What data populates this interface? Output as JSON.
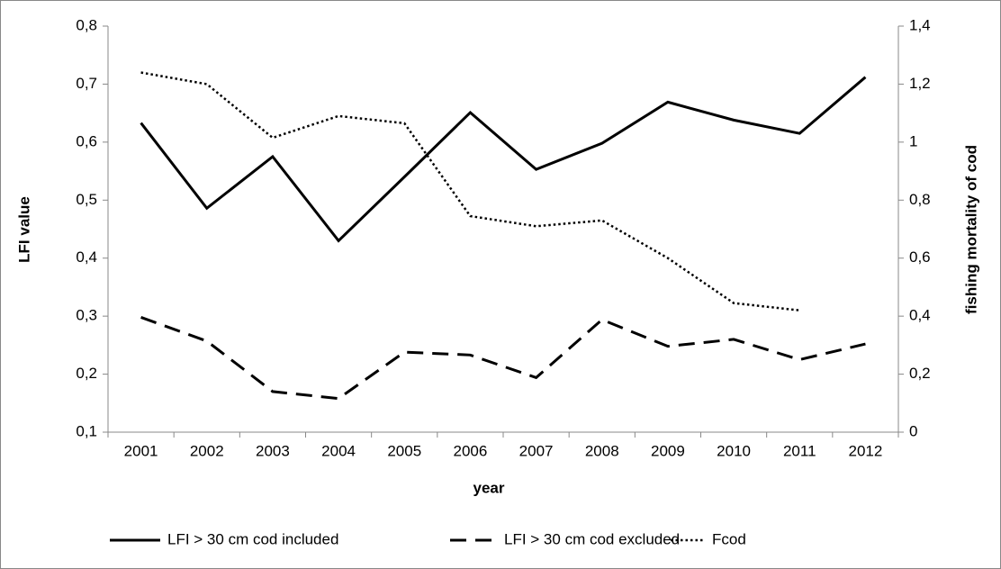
{
  "chart_data": {
    "type": "line",
    "categories": [
      "2001",
      "2002",
      "2003",
      "2004",
      "2005",
      "2006",
      "2007",
      "2008",
      "2009",
      "2010",
      "2011",
      "2012"
    ],
    "x_label": "year",
    "y_label": "LFI value",
    "y2_label": "fishing mortality of cod",
    "ylim": [
      0.1,
      0.8
    ],
    "yticks": [
      {
        "value": 0.1,
        "label": "0,1"
      },
      {
        "value": 0.2,
        "label": "0,2"
      },
      {
        "value": 0.3,
        "label": "0,3"
      },
      {
        "value": 0.4,
        "label": "0,4"
      },
      {
        "value": 0.5,
        "label": "0,5"
      },
      {
        "value": 0.6,
        "label": "0,6"
      },
      {
        "value": 0.7,
        "label": "0,7"
      },
      {
        "value": 0.8,
        "label": "0,8"
      }
    ],
    "y2lim": [
      0,
      1.4
    ],
    "y2ticks": [
      0,
      {
        "value": 0.2,
        "label": "0,2"
      },
      {
        "value": 0.4,
        "label": "0,4"
      },
      {
        "value": 0.6,
        "label": "0,6"
      },
      {
        "value": 0.8,
        "label": "0,8"
      },
      1,
      {
        "value": 1.2,
        "label": "1,2"
      },
      {
        "value": 1.4,
        "label": "1,4"
      }
    ],
    "legend": "bottom",
    "series": [
      {
        "name": "LFI > 30 cm cod included",
        "color": "#000000",
        "line_style": "solid",
        "values": [
          0.633,
          0.486,
          0.575,
          0.43,
          0.54,
          0.651,
          0.553,
          0.598,
          0.669,
          0.638,
          0.615,
          0.712
        ]
      },
      {
        "name": "LFI > 30 cm cod excluded",
        "color": "#000000",
        "line_style": "dashed",
        "values": [
          0.298,
          0.257,
          0.17,
          0.158,
          0.238,
          0.233,
          0.194,
          0.294,
          0.248,
          0.26,
          0.225,
          0.252
        ]
      },
      {
        "name": "Fcod",
        "color": "#000000",
        "line_style": "dotted",
        "axis": "y2",
        "values": [
          1.24,
          1.2,
          1.015,
          1.09,
          1.065,
          0.745,
          0.71,
          0.73,
          0.6,
          0.445,
          0.42,
          null
        ]
      }
    ]
  }
}
